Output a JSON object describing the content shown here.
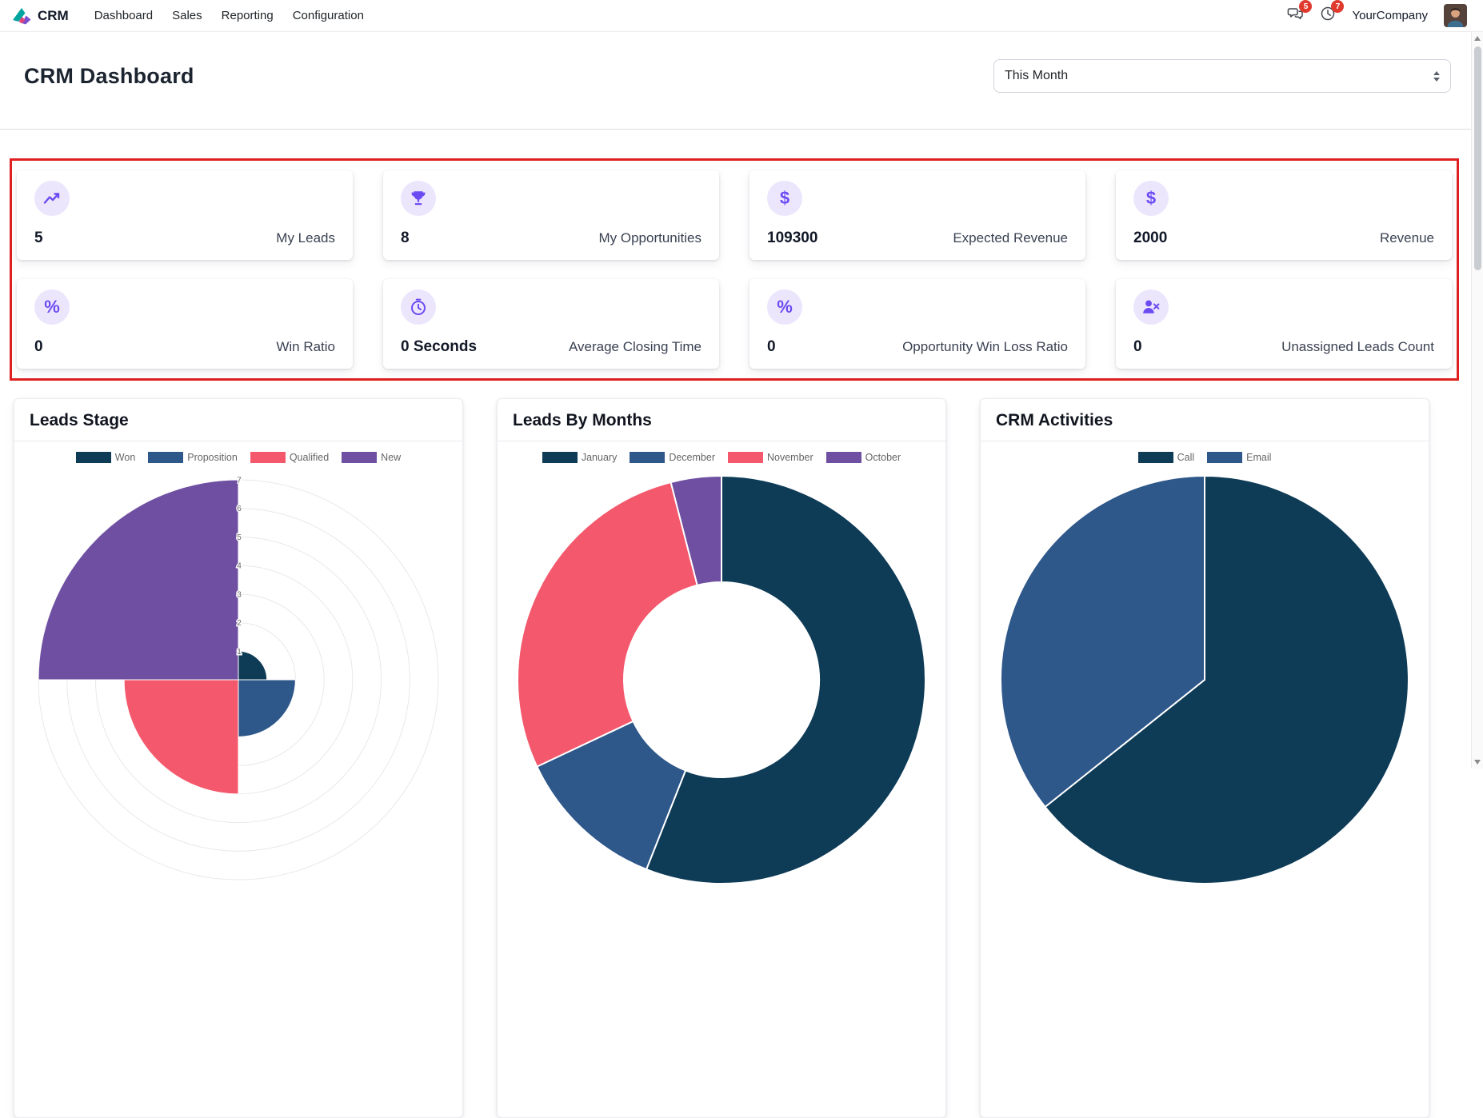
{
  "colors": {
    "accent": "#6b4cf2",
    "accent_bg": "#ece6fd",
    "annotation_border": "#e02020",
    "badge": "#e03a2f",
    "nav_icon": "#42464d"
  },
  "icon_glyphs": {
    "dollar": "$",
    "percent": "%"
  },
  "nav": {
    "app_name": "CRM",
    "items": [
      {
        "label": "Dashboard"
      },
      {
        "label": "Sales"
      },
      {
        "label": "Reporting"
      },
      {
        "label": "Configuration"
      }
    ],
    "messages_badge": "5",
    "activities_badge": "7",
    "company": "YourCompany"
  },
  "header": {
    "title": "CRM Dashboard",
    "period_filter": "This Month"
  },
  "kpis": [
    {
      "icon": "chart-line",
      "value": "5",
      "label": "My Leads"
    },
    {
      "icon": "trophy",
      "value": "8",
      "label": "My Opportunities"
    },
    {
      "icon": "dollar",
      "value": "109300",
      "label": "Expected Revenue"
    },
    {
      "icon": "dollar",
      "value": "2000",
      "label": "Revenue"
    },
    {
      "icon": "percent",
      "value": "0",
      "label": "Win Ratio"
    },
    {
      "icon": "clock",
      "value": "0 Seconds",
      "label": "Average Closing Time"
    },
    {
      "icon": "percent",
      "value": "0",
      "label": "Opportunity Win Loss Ratio"
    },
    {
      "icon": "user-x",
      "value": "0",
      "label": "Unassigned Leads Count"
    }
  ],
  "chart_data": [
    {
      "type": "polarArea",
      "title": "Leads Stage",
      "categories": [
        "Won",
        "Proposition",
        "Qualified",
        "New"
      ],
      "values": [
        1,
        2,
        4,
        7
      ],
      "colors": [
        "#0e3b56",
        "#2e578a",
        "#f4586c",
        "#6f4fa1"
      ],
      "r_axis": {
        "min": 0,
        "max": 7,
        "ticks": [
          0,
          1,
          2,
          3,
          4,
          5,
          6,
          7
        ]
      },
      "legend_position": "top",
      "grid": true
    },
    {
      "type": "doughnut",
      "title": "Leads By Months",
      "categories": [
        "January",
        "December",
        "November",
        "October"
      ],
      "values": [
        14,
        3,
        7,
        1
      ],
      "colors": [
        "#0e3b56",
        "#2e578a",
        "#f4586c",
        "#6f4fa1"
      ],
      "legend_position": "top",
      "grid": false
    },
    {
      "type": "pie",
      "title": "CRM Activities",
      "categories": [
        "Call",
        "Email"
      ],
      "values": [
        9,
        5
      ],
      "colors": [
        "#0e3b56",
        "#2e578a"
      ],
      "legend_position": "top",
      "grid": false
    }
  ]
}
